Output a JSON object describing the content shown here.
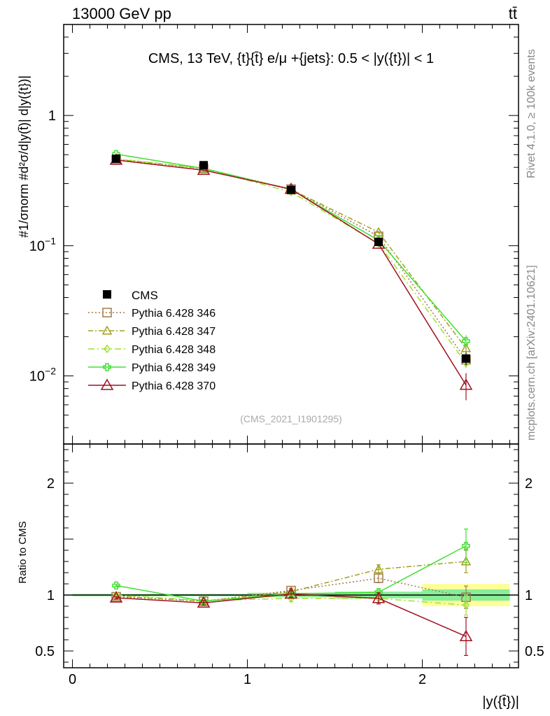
{
  "header": {
    "left": "13000 GeV pp",
    "right": "tt̄"
  },
  "side_labels": {
    "rivet": "Rivet 4.1.0, ≥ 100k events",
    "mcplots": "mcplots.cern.ch [arXiv:2401.10621]"
  },
  "watermark": "(CMS_2021_I1901295)",
  "chart_data": {
    "type": "line",
    "title": "CMS, 13 TeV, {t}{t̄} e/μ +{jets}: 0.5 < |y({t})| < 1",
    "xlabel": "|y({t̄})|",
    "ylabel_main": "#1/σnorm #d²σ/d|y(t̄)| d|y({t})|",
    "ylabel_ratio": "Ratio to CMS",
    "xlim": [
      -0.05,
      2.55
    ],
    "ylim_main": [
      0.003,
      5.0
    ],
    "ylim_ratio": [
      0.35,
      2.35
    ],
    "yscale_main": "log",
    "x": [
      0.25,
      0.75,
      1.25,
      1.75,
      2.25
    ],
    "x_ticks": [
      "0",
      "1",
      "2"
    ],
    "y_ticks_main": [
      "1",
      "10^-1",
      "10^-2"
    ],
    "y_ticks_ratio": [
      "0.5",
      "1",
      "2"
    ],
    "legend_position": "middle-left",
    "data": {
      "name": "CMS",
      "values": [
        0.465,
        0.415,
        0.268,
        0.107,
        0.0136
      ],
      "errors": [
        0.02,
        0.015,
        0.01,
        0.005,
        0.0015
      ],
      "ratio_band_stat": [
        0.01,
        0.01,
        0.02,
        0.03,
        0.05
      ],
      "ratio_band_total": [
        0.01,
        0.01,
        0.02,
        0.03,
        0.1
      ]
    },
    "series": [
      {
        "name": "Pythia 6.428 346",
        "color": "#a0784b",
        "dash": "2,3",
        "marker": "square",
        "values": [
          0.457,
          0.392,
          0.272,
          0.118,
          0.0133
        ],
        "errors": [
          0.006,
          0.005,
          0.004,
          0.003,
          0.001
        ],
        "ratio": [
          0.985,
          0.945,
          1.04,
          1.15,
          0.98
        ],
        "ratio_err": [
          0.01,
          0.01,
          0.02,
          0.04,
          0.1
        ]
      },
      {
        "name": "Pythia 6.428 347",
        "color": "#a0a020",
        "dash": "7,3,2,3",
        "marker": "triangle",
        "values": [
          0.462,
          0.392,
          0.27,
          0.127,
          0.0163
        ],
        "errors": [
          0.006,
          0.005,
          0.004,
          0.003,
          0.0012
        ],
        "ratio": [
          0.99,
          0.945,
          1.03,
          1.23,
          1.3
        ],
        "ratio_err": [
          0.01,
          0.01,
          0.02,
          0.04,
          0.1
        ]
      },
      {
        "name": "Pythia 6.428 348",
        "color": "#a0e030",
        "dash": "9,4,2,4",
        "marker": "diamond",
        "values": [
          0.466,
          0.393,
          0.258,
          0.104,
          0.0125
        ],
        "errors": [
          0.006,
          0.005,
          0.004,
          0.003,
          0.001
        ],
        "ratio": [
          1.0,
          0.95,
          0.97,
          0.97,
          0.91
        ],
        "ratio_err": [
          0.01,
          0.01,
          0.03,
          0.04,
          0.09
        ]
      },
      {
        "name": "Pythia 6.428 349",
        "color": "#40e030",
        "dash": "",
        "marker": "cross",
        "values": [
          0.505,
          0.392,
          0.27,
          0.11,
          0.0185
        ],
        "errors": [
          0.006,
          0.005,
          0.004,
          0.003,
          0.002
        ],
        "ratio": [
          1.085,
          0.945,
          1.01,
          1.025,
          1.44
        ],
        "ratio_err": [
          0.01,
          0.01,
          0.02,
          0.03,
          0.15
        ]
      },
      {
        "name": "Pythia 6.428 370",
        "color": "#a01020",
        "dash": "",
        "marker": "open-triangle",
        "values": [
          0.455,
          0.38,
          0.272,
          0.103,
          0.0085
        ],
        "errors": [
          0.006,
          0.005,
          0.004,
          0.003,
          0.002
        ],
        "ratio": [
          0.975,
          0.93,
          1.01,
          0.97,
          0.63
        ],
        "ratio_err": [
          0.01,
          0.02,
          0.03,
          0.05,
          0.17
        ]
      }
    ]
  }
}
